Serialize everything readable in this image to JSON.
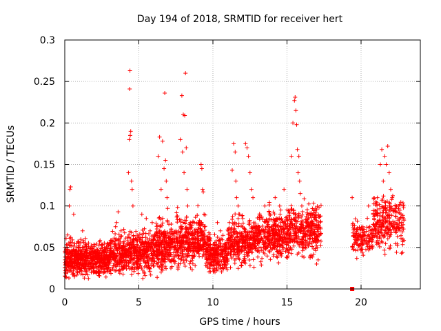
{
  "chart_data": {
    "type": "scatter",
    "title": "Day 194 of 2018, SRMTID for receiver hert",
    "xlabel": "GPS time / hours",
    "ylabel": "SRMTID / TECUs",
    "xlim": [
      0,
      24
    ],
    "ylim": [
      0,
      0.3
    ],
    "x_ticks": [
      0,
      5,
      10,
      15,
      20
    ],
    "x_tick_labels": [
      "0",
      "5",
      "10",
      "15",
      "20"
    ],
    "y_ticks": [
      0,
      0.05,
      0.1,
      0.15,
      0.2,
      0.25,
      0.3
    ],
    "y_tick_labels": [
      "0",
      "0.05",
      "0.1",
      "0.15",
      "0.2",
      "0.25",
      "0.3"
    ],
    "grid": true,
    "marker": "plus",
    "color": "#ff0000",
    "outlier_points": [
      [
        0.1,
        0.014
      ],
      [
        0.2,
        0.065
      ],
      [
        0.3,
        0.1
      ],
      [
        0.35,
        0.12
      ],
      [
        0.4,
        0.123
      ],
      [
        0.6,
        0.09
      ],
      [
        1.2,
        0.07
      ],
      [
        1.8,
        0.02
      ],
      [
        3.5,
        0.08
      ],
      [
        3.6,
        0.093
      ],
      [
        3.8,
        0.07
      ],
      [
        4.3,
        0.14
      ],
      [
        4.35,
        0.18
      ],
      [
        4.4,
        0.263
      ],
      [
        4.38,
        0.241
      ],
      [
        4.45,
        0.19
      ],
      [
        4.42,
        0.185
      ],
      [
        4.5,
        0.13
      ],
      [
        4.55,
        0.12
      ],
      [
        4.6,
        0.1
      ],
      [
        5.2,
        0.09
      ],
      [
        5.5,
        0.085
      ],
      [
        5.9,
        0.08
      ],
      [
        6.3,
        0.16
      ],
      [
        6.4,
        0.183
      ],
      [
        6.5,
        0.12
      ],
      [
        6.6,
        0.178
      ],
      [
        6.7,
        0.145
      ],
      [
        6.75,
        0.236
      ],
      [
        6.8,
        0.155
      ],
      [
        6.85,
        0.13
      ],
      [
        6.9,
        0.11
      ],
      [
        6.95,
        0.097
      ],
      [
        7.5,
        0.07
      ],
      [
        7.6,
        0.088
      ],
      [
        7.8,
        0.18
      ],
      [
        7.9,
        0.233
      ],
      [
        7.95,
        0.165
      ],
      [
        8.0,
        0.21
      ],
      [
        8.05,
        0.14
      ],
      [
        8.1,
        0.209
      ],
      [
        8.15,
        0.26
      ],
      [
        8.2,
        0.17
      ],
      [
        8.25,
        0.12
      ],
      [
        8.3,
        0.1
      ],
      [
        9.0,
        0.08
      ],
      [
        9.2,
        0.15
      ],
      [
        9.25,
        0.145
      ],
      [
        9.3,
        0.12
      ],
      [
        9.35,
        0.117
      ],
      [
        9.4,
        0.09
      ],
      [
        10.3,
        0.08
      ],
      [
        10.5,
        0.07
      ],
      [
        10.8,
        0.03
      ],
      [
        11.3,
        0.143
      ],
      [
        11.4,
        0.175
      ],
      [
        11.5,
        0.165
      ],
      [
        11.55,
        0.13
      ],
      [
        11.6,
        0.11
      ],
      [
        11.7,
        0.1
      ],
      [
        11.8,
        0.09
      ],
      [
        12.2,
        0.175
      ],
      [
        12.3,
        0.17
      ],
      [
        12.4,
        0.16
      ],
      [
        12.5,
        0.14
      ],
      [
        12.6,
        0.12
      ],
      [
        12.7,
        0.11
      ],
      [
        13.5,
        0.1
      ],
      [
        13.8,
        0.085
      ],
      [
        14.2,
        0.11
      ],
      [
        14.5,
        0.1
      ],
      [
        14.8,
        0.12
      ],
      [
        15.3,
        0.16
      ],
      [
        15.4,
        0.2
      ],
      [
        15.5,
        0.227
      ],
      [
        15.55,
        0.231
      ],
      [
        15.6,
        0.215
      ],
      [
        15.65,
        0.198
      ],
      [
        15.7,
        0.168
      ],
      [
        15.75,
        0.14
      ],
      [
        15.8,
        0.16
      ],
      [
        15.85,
        0.13
      ],
      [
        15.9,
        0.115
      ],
      [
        16.0,
        0.1
      ],
      [
        16.4,
        0.09
      ],
      [
        16.8,
        0.095
      ],
      [
        17.0,
        0.03
      ],
      [
        17.1,
        0.035
      ],
      [
        19.4,
        0.11
      ],
      [
        19.6,
        0.065
      ],
      [
        20.5,
        0.1
      ],
      [
        21.1,
        0.11
      ],
      [
        21.3,
        0.15
      ],
      [
        21.4,
        0.168
      ],
      [
        21.5,
        0.13
      ],
      [
        21.6,
        0.16
      ],
      [
        21.7,
        0.15
      ],
      [
        21.8,
        0.172
      ],
      [
        21.9,
        0.14
      ],
      [
        22.0,
        0.12
      ],
      [
        22.1,
        0.11
      ],
      [
        22.3,
        0.095
      ],
      [
        22.5,
        0.1
      ],
      [
        22.7,
        0.09
      ],
      [
        22.8,
        0.044
      ],
      [
        22.85,
        0.1
      ]
    ],
    "segments": [
      {
        "x_start": 0.0,
        "x_end": 3.0,
        "y_center": 0.036,
        "y_spread": 0.018,
        "count": 620
      },
      {
        "x_start": 3.0,
        "x_end": 4.2,
        "y_center": 0.042,
        "y_spread": 0.02,
        "count": 220
      },
      {
        "x_start": 4.2,
        "x_end": 6.0,
        "y_center": 0.045,
        "y_spread": 0.022,
        "count": 330
      },
      {
        "x_start": 6.0,
        "x_end": 7.5,
        "y_center": 0.052,
        "y_spread": 0.025,
        "count": 280
      },
      {
        "x_start": 7.5,
        "x_end": 9.5,
        "y_center": 0.058,
        "y_spread": 0.025,
        "count": 350
      },
      {
        "x_start": 9.5,
        "x_end": 11.0,
        "y_center": 0.042,
        "y_spread": 0.02,
        "count": 260
      },
      {
        "x_start": 11.0,
        "x_end": 13.0,
        "y_center": 0.058,
        "y_spread": 0.024,
        "count": 330
      },
      {
        "x_start": 13.0,
        "x_end": 15.0,
        "y_center": 0.065,
        "y_spread": 0.025,
        "count": 330
      },
      {
        "x_start": 15.0,
        "x_end": 17.3,
        "y_center": 0.07,
        "y_spread": 0.026,
        "count": 360
      },
      {
        "x_start": 19.4,
        "x_end": 20.8,
        "y_center": 0.062,
        "y_spread": 0.018,
        "count": 140
      },
      {
        "x_start": 20.8,
        "x_end": 22.9,
        "y_center": 0.08,
        "y_spread": 0.028,
        "count": 260
      }
    ],
    "special_marker": {
      "x": 19.4,
      "y": 0.0,
      "shape": "square"
    }
  }
}
